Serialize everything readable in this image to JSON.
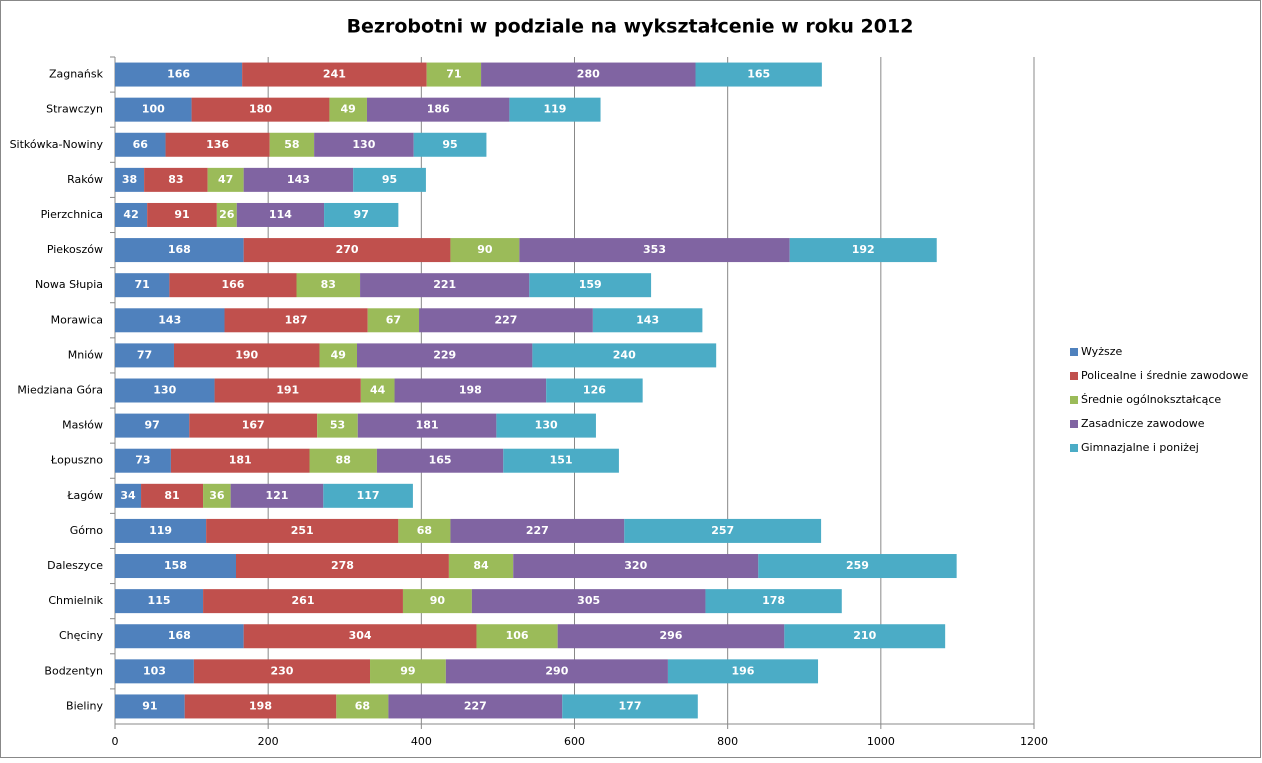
{
  "chart_data": {
    "type": "bar",
    "orientation": "horizontal",
    "stacked": true,
    "title": "Bezrobotni w podziale na wykształcenie w roku 2012",
    "categories": [
      "Zagnańsk",
      "Strawczyn",
      "Sitkówka-Nowiny",
      "Raków",
      "Pierzchnica",
      "Piekoszów",
      "Nowa Słupia",
      "Morawica",
      "Mniów",
      "Miedziana Góra",
      "Masłów",
      "Łopuszno",
      "Łagów",
      "Górno",
      "Daleszyce",
      "Chmielnik",
      "Chęciny",
      "Bodzentyn",
      "Bieliny"
    ],
    "series": [
      {
        "name": "Wyższe",
        "color": "#4f81bd",
        "values": [
          166,
          100,
          66,
          38,
          42,
          168,
          71,
          143,
          77,
          130,
          97,
          73,
          34,
          119,
          158,
          115,
          168,
          103,
          91
        ]
      },
      {
        "name": "Policealne i średnie zawodowe",
        "color": "#c0504d",
        "values": [
          241,
          180,
          136,
          83,
          91,
          270,
          166,
          187,
          190,
          191,
          167,
          181,
          81,
          251,
          278,
          261,
          304,
          230,
          198
        ]
      },
      {
        "name": "Średnie ogólnokształcące",
        "color": "#9bbb59",
        "values": [
          71,
          49,
          58,
          47,
          26,
          90,
          83,
          67,
          49,
          44,
          53,
          88,
          36,
          68,
          84,
          90,
          106,
          99,
          68
        ]
      },
      {
        "name": "Zasadnicze zawodowe",
        "color": "#8064a2",
        "values": [
          280,
          186,
          130,
          143,
          114,
          353,
          221,
          227,
          229,
          198,
          181,
          165,
          121,
          227,
          320,
          305,
          296,
          290,
          227
        ]
      },
      {
        "name": "Gimnazjalne  i poniżej",
        "color": "#4bacc6",
        "values": [
          165,
          119,
          95,
          95,
          97,
          192,
          159,
          143,
          240,
          126,
          130,
          151,
          117,
          257,
          259,
          178,
          210,
          196,
          177
        ]
      }
    ],
    "xlim": [
      0,
      1200
    ],
    "xticks": [
      0,
      200,
      400,
      600,
      800,
      1000,
      1200
    ],
    "grid": true,
    "legend": "right"
  }
}
